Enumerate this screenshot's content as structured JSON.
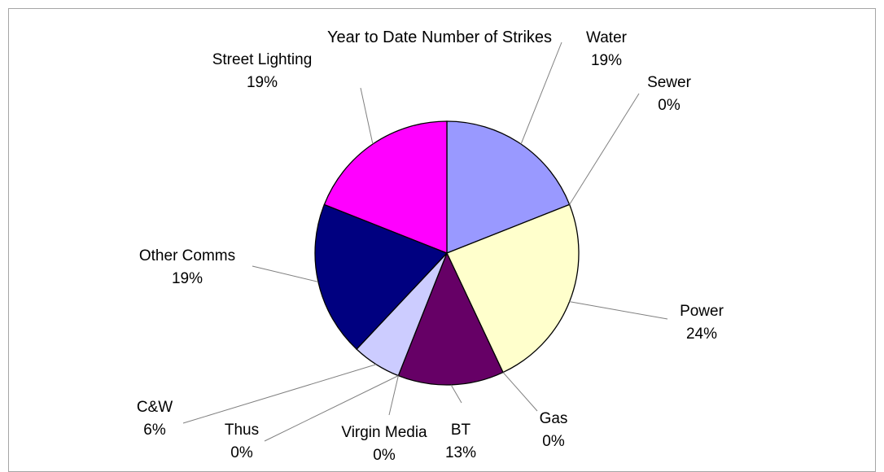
{
  "chart_data": {
    "type": "pie",
    "title": "Year to Date Number of Strikes",
    "slices": [
      {
        "name": "Water",
        "value": 19,
        "label": "19%",
        "color": "#9999ff"
      },
      {
        "name": "Sewer",
        "value": 0,
        "label": "0%",
        "color": "#993366"
      },
      {
        "name": "Power",
        "value": 24,
        "label": "24%",
        "color": "#ffffcc"
      },
      {
        "name": "Gas",
        "value": 0,
        "label": "0%",
        "color": "#ccffff"
      },
      {
        "name": "BT",
        "value": 13,
        "label": "13%",
        "color": "#660066"
      },
      {
        "name": "Virgin Media",
        "value": 0,
        "label": "0%",
        "color": "#ff8080"
      },
      {
        "name": "Thus",
        "value": 0,
        "label": "0%",
        "color": "#0066cc"
      },
      {
        "name": "C&W",
        "value": 6,
        "label": "6%",
        "color": "#ccccff"
      },
      {
        "name": "Other Comms",
        "value": 19,
        "label": "19%",
        "color": "#000080"
      },
      {
        "name": "Street Lighting",
        "value": 19,
        "label": "19%",
        "color": "#ff00ff"
      }
    ],
    "start_angle": "12 o'clock",
    "direction": "clockwise",
    "legend": "none"
  }
}
